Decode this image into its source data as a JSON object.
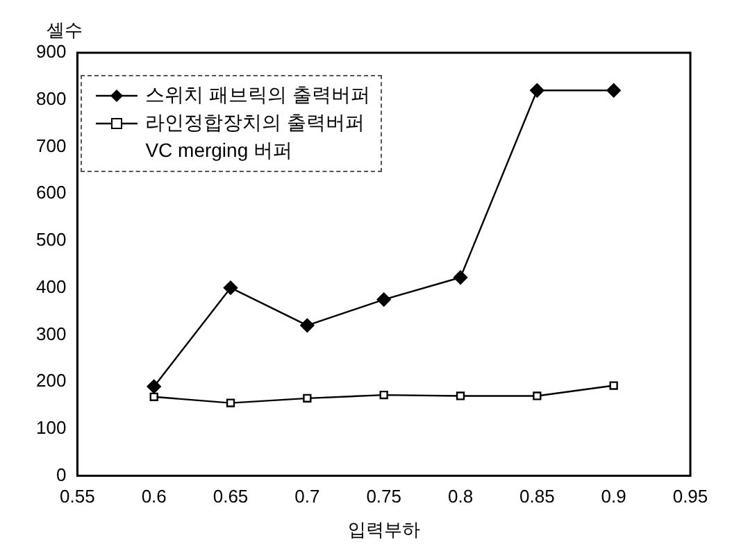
{
  "chart_data": {
    "type": "line",
    "xlabel": "입력부하",
    "ylabel": "셀수",
    "x": [
      0.6,
      0.65,
      0.7,
      0.75,
      0.8,
      0.85,
      0.9
    ],
    "series": [
      {
        "name": "스위치 패브릭의 출력버퍼",
        "color": "#000000",
        "marker": "diamond",
        "values": [
          190,
          400,
          320,
          375,
          422,
          820,
          820
        ]
      },
      {
        "name": "라인정합장치의 출력버퍼",
        "color": "#000000",
        "marker": "square",
        "values": [
          168,
          155,
          165,
          172,
          170,
          170,
          192
        ]
      },
      {
        "name": "VC merging 버퍼",
        "color": "#000000",
        "marker": "none",
        "values": [
          null,
          null,
          null,
          null,
          null,
          null,
          null
        ]
      }
    ],
    "xlim": [
      0.55,
      0.95
    ],
    "xticks": [
      0.55,
      0.6,
      0.65,
      0.7,
      0.75,
      0.8,
      0.85,
      0.9,
      0.95
    ],
    "ylim": [
      0,
      900
    ],
    "yticks": [
      0,
      100,
      200,
      300,
      400,
      500,
      600,
      700,
      800,
      900
    ],
    "legend": "top left",
    "grid": false
  }
}
